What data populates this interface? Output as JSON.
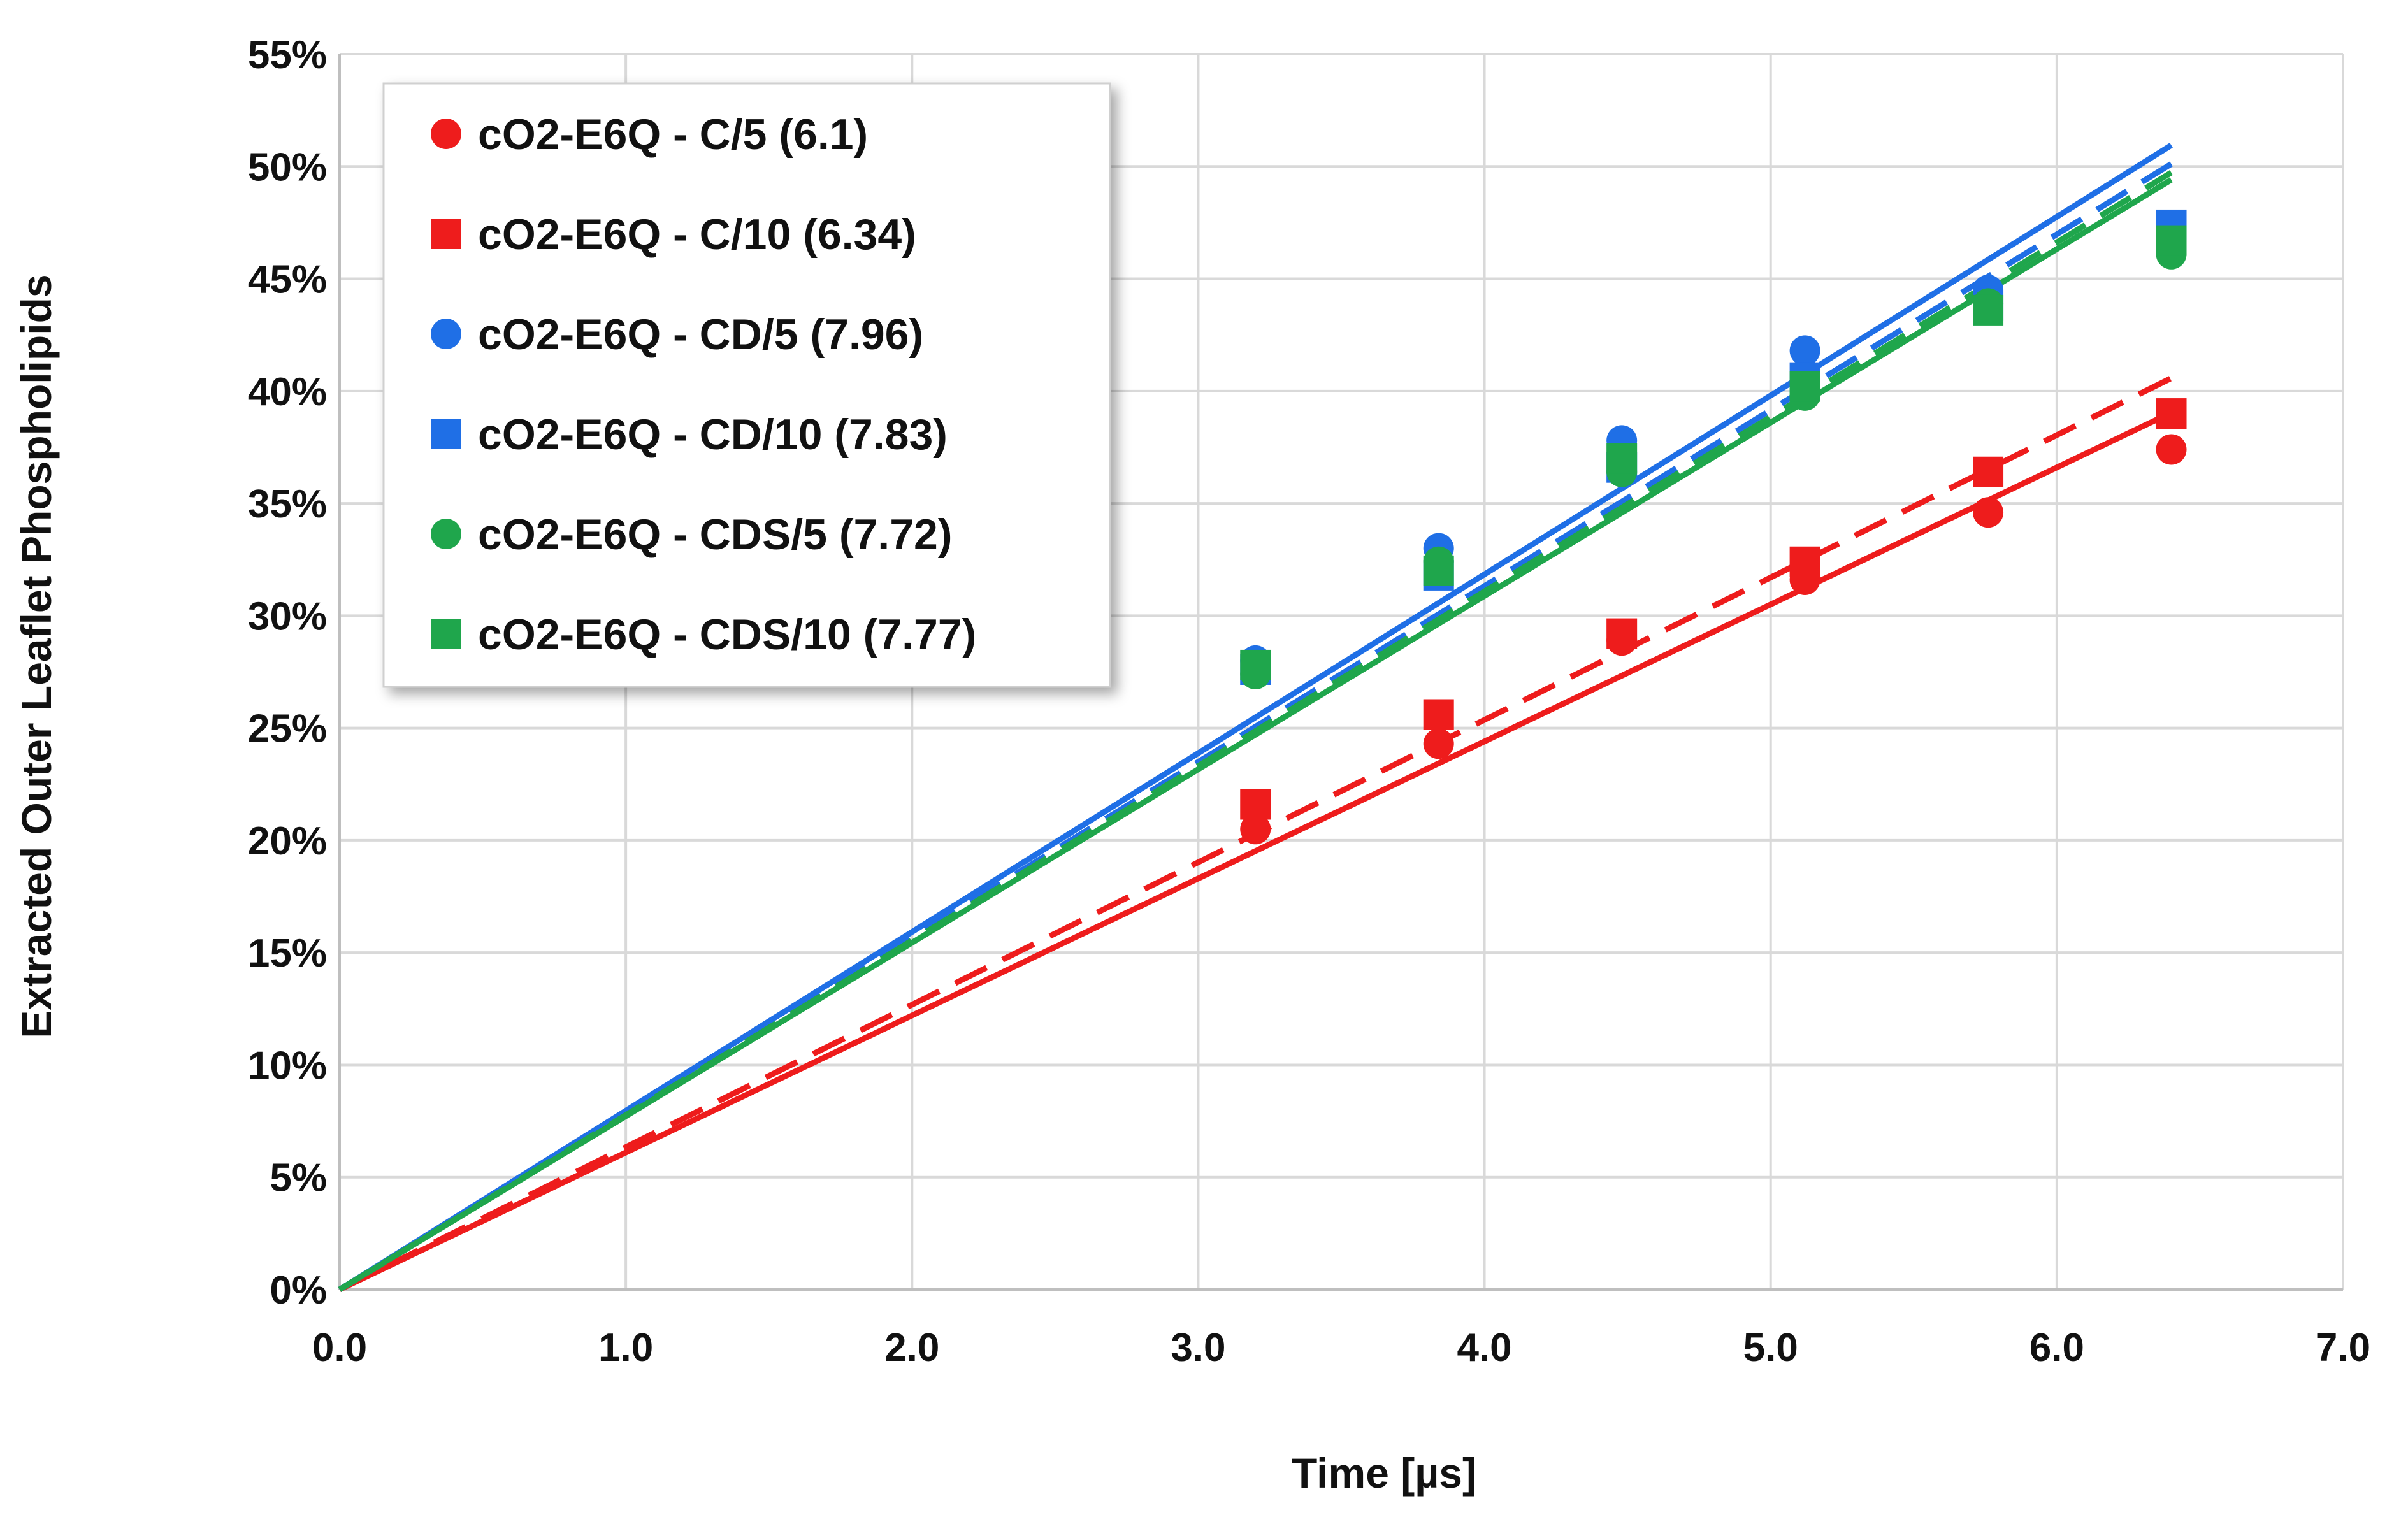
{
  "chart_data": {
    "type": "scatter",
    "xlabel": "Time [µs]",
    "ylabel": "Extracted Outer Leaflet Phospholipids",
    "xlim": [
      0,
      7
    ],
    "ylim": [
      0,
      55
    ],
    "x_ticks": [
      0,
      1,
      2,
      3,
      4,
      5,
      6,
      7
    ],
    "x_tick_labels": [
      "0.0",
      "1.0",
      "2.0",
      "3.0",
      "4.0",
      "5.0",
      "6.0",
      "7.0"
    ],
    "y_ticks": [
      0,
      5,
      10,
      15,
      20,
      25,
      30,
      35,
      40,
      45,
      50,
      55
    ],
    "y_tick_labels": [
      "0%",
      "5%",
      "10%",
      "15%",
      "20%",
      "25%",
      "30%",
      "35%",
      "40%",
      "45%",
      "50%",
      "55%"
    ],
    "grid": true,
    "legend_position": "top-left",
    "series": [
      {
        "name": "cO2-E6Q - C/5 (6.1)",
        "color": "#ee1c1c",
        "marker": "circle",
        "x": [
          3.2,
          3.84,
          4.48,
          5.12,
          5.76,
          6.4
        ],
        "y": [
          20.5,
          24.3,
          28.9,
          31.6,
          34.6,
          37.4
        ],
        "fit_slope": 6.1,
        "fit_style": "solid"
      },
      {
        "name": "cO2-E6Q - C/10 (6.34)",
        "color": "#ee1c1c",
        "marker": "square",
        "x": [
          3.2,
          3.84,
          4.48,
          5.12,
          5.76,
          6.4
        ],
        "y": [
          21.6,
          25.6,
          29.2,
          32.4,
          36.4,
          39.0
        ],
        "fit_slope": 6.34,
        "fit_style": "dashed"
      },
      {
        "name": "cO2-E6Q - CD/5 (7.96)",
        "color": "#1f6fe6",
        "marker": "circle",
        "x": [
          3.2,
          3.84,
          4.48,
          5.12,
          5.76,
          6.4
        ],
        "y": [
          28.0,
          33.0,
          37.8,
          41.8,
          44.5,
          46.5
        ],
        "fit_slope": 7.96,
        "fit_style": "solid"
      },
      {
        "name": "cO2-E6Q - CD/10 (7.83)",
        "color": "#1f6fe6",
        "marker": "square",
        "x": [
          3.2,
          3.84,
          4.48,
          5.12,
          5.76,
          6.4
        ],
        "y": [
          27.6,
          31.8,
          36.6,
          40.6,
          43.8,
          47.4
        ],
        "fit_slope": 7.83,
        "fit_style": "dashed"
      },
      {
        "name": "cO2-E6Q - CDS/5 (7.72)",
        "color": "#1fa64c",
        "marker": "circle",
        "x": [
          3.2,
          3.84,
          4.48,
          5.12,
          5.76,
          6.4
        ],
        "y": [
          27.4,
          32.4,
          36.4,
          39.8,
          43.9,
          46.1
        ],
        "fit_slope": 7.72,
        "fit_style": "solid"
      },
      {
        "name": "cO2-E6Q - CDS/10 (7.77)",
        "color": "#1fa64c",
        "marker": "square",
        "x": [
          3.2,
          3.84,
          4.48,
          5.12,
          5.76,
          6.4
        ],
        "y": [
          27.8,
          32.0,
          37.0,
          40.2,
          43.6,
          46.7
        ],
        "fit_slope": 7.77,
        "fit_style": "dashed"
      }
    ]
  }
}
